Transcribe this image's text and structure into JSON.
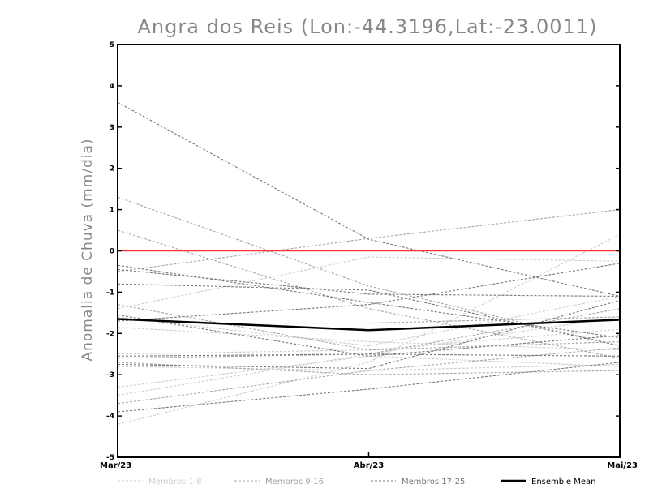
{
  "chart_data": {
    "type": "line",
    "title": "Angra dos Reis (Lon:-44.3196,Lat:-23.0011)",
    "xlabel": "",
    "ylabel": "Anomalia de Chuva (mm/dia)",
    "categories": [
      "Mar/23",
      "Abr/23",
      "Mai/23"
    ],
    "ylim": [
      -5,
      5
    ],
    "yticks": [
      -5,
      -4,
      -3,
      -2,
      -1,
      0,
      1,
      2,
      3,
      4,
      5
    ],
    "ytick_labels": [
      "-5",
      "-4",
      "-3",
      "-2",
      "-1",
      "0",
      "1",
      "2",
      "3",
      "4",
      "5"
    ],
    "reference_line": {
      "value": 0,
      "color": "#ff3333"
    },
    "groups": [
      {
        "name": "Membros 1-8",
        "color": "#cccccc"
      },
      {
        "name": "Membros 9-16",
        "color": "#a6a6a6"
      },
      {
        "name": "Membros 17-25",
        "color": "#777777"
      }
    ],
    "series": [
      {
        "name": "m1",
        "group": 0,
        "values": [
          -1.4,
          -0.15,
          -0.25
        ]
      },
      {
        "name": "m2",
        "group": 0,
        "values": [
          -1.6,
          -2.3,
          -1.1
        ]
      },
      {
        "name": "m3",
        "group": 0,
        "values": [
          -1.85,
          -2.2,
          -2.4
        ]
      },
      {
        "name": "m4",
        "group": 0,
        "values": [
          -2.5,
          -2.4,
          -1.9
        ]
      },
      {
        "name": "m5",
        "group": 0,
        "values": [
          -2.8,
          -2.9,
          -2.75
        ]
      },
      {
        "name": "m6",
        "group": 0,
        "values": [
          -3.3,
          -2.55,
          -2.8
        ]
      },
      {
        "name": "m7",
        "group": 0,
        "values": [
          -3.5,
          -2.5,
          -1.6
        ]
      },
      {
        "name": "m8",
        "group": 0,
        "values": [
          -4.2,
          -2.7,
          0.4
        ]
      },
      {
        "name": "m9",
        "group": 1,
        "values": [
          1.3,
          -0.85,
          -2.3
        ]
      },
      {
        "name": "m10",
        "group": 1,
        "values": [
          0.5,
          -1.4,
          -2.6
        ]
      },
      {
        "name": "m11",
        "group": 1,
        "values": [
          -0.5,
          0.3,
          1.0
        ]
      },
      {
        "name": "m12",
        "group": 1,
        "values": [
          -1.3,
          -2.4,
          -2.2
        ]
      },
      {
        "name": "m13",
        "group": 1,
        "values": [
          -1.75,
          -1.75,
          -1.6
        ]
      },
      {
        "name": "m14",
        "group": 1,
        "values": [
          -2.6,
          -2.5,
          -1.4
        ]
      },
      {
        "name": "m15",
        "group": 1,
        "values": [
          -2.7,
          -3.0,
          -2.9
        ]
      },
      {
        "name": "m16",
        "group": 1,
        "values": [
          -3.7,
          -2.9,
          -2.35
        ]
      },
      {
        "name": "m17",
        "group": 2,
        "values": [
          3.6,
          0.28,
          -1.1
        ]
      },
      {
        "name": "m18",
        "group": 2,
        "values": [
          -0.35,
          -1.25,
          -2.1
        ]
      },
      {
        "name": "m19",
        "group": 2,
        "values": [
          -0.45,
          -1.05,
          -1.1
        ]
      },
      {
        "name": "m20",
        "group": 2,
        "values": [
          -0.8,
          -0.95,
          -2.3
        ]
      },
      {
        "name": "m21",
        "group": 2,
        "values": [
          -1.55,
          -2.55,
          -2.05
        ]
      },
      {
        "name": "m22",
        "group": 2,
        "values": [
          -1.7,
          -1.3,
          -0.3
        ]
      },
      {
        "name": "m23",
        "group": 2,
        "values": [
          -2.55,
          -2.5,
          -2.55
        ]
      },
      {
        "name": "m24",
        "group": 2,
        "values": [
          -2.75,
          -2.85,
          -1.2
        ]
      },
      {
        "name": "m25",
        "group": 2,
        "values": [
          -3.9,
          -3.35,
          -2.7
        ]
      }
    ],
    "ensemble_mean": {
      "name": "Ensemble Mean",
      "color": "#000000",
      "values": [
        -1.65,
        -1.92,
        -1.67
      ]
    }
  }
}
